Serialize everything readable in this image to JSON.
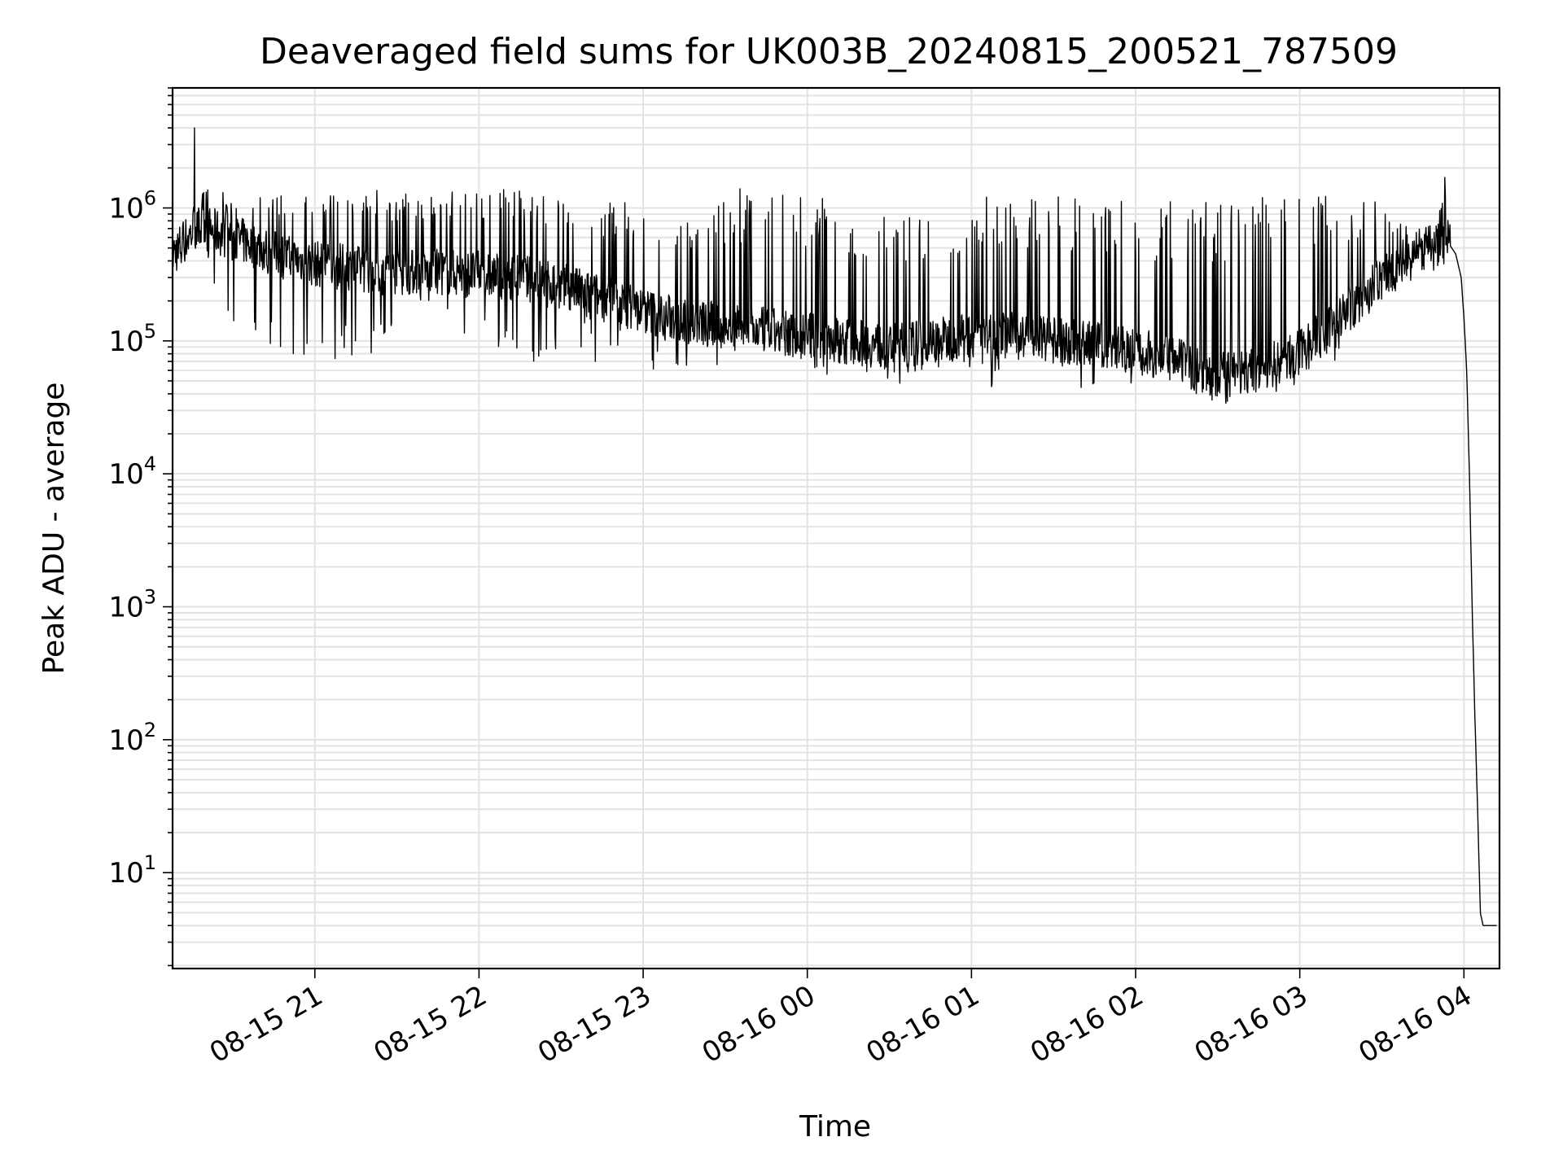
{
  "chart_data": {
    "type": "line",
    "title": "Deaveraged field sums for UK003B_20240815_200521_787509",
    "xlabel": "Time",
    "ylabel": "Peak ADU - average",
    "yscale": "log",
    "ylim": [
      1.9,
      8000000
    ],
    "xlim": [
      "2024-08-15 20:08",
      "2024-08-16 04:13"
    ],
    "grid": true,
    "x_ticks": [
      {
        "value": "2024-08-15 21:00",
        "label": "08-15 21"
      },
      {
        "value": "2024-08-15 22:00",
        "label": "08-15 22"
      },
      {
        "value": "2024-08-15 23:00",
        "label": "08-15 23"
      },
      {
        "value": "2024-08-16 00:00",
        "label": "08-16 00"
      },
      {
        "value": "2024-08-16 01:00",
        "label": "08-16 01"
      },
      {
        "value": "2024-08-16 02:00",
        "label": "08-16 02"
      },
      {
        "value": "2024-08-16 03:00",
        "label": "08-16 03"
      },
      {
        "value": "2024-08-16 04:00",
        "label": "08-16 04"
      }
    ],
    "y_ticks": [
      {
        "value": 10,
        "base": "10",
        "exp": "1"
      },
      {
        "value": 100,
        "base": "10",
        "exp": "2"
      },
      {
        "value": 1000,
        "base": "10",
        "exp": "3"
      },
      {
        "value": 10000,
        "base": "10",
        "exp": "4"
      },
      {
        "value": 100000,
        "base": "10",
        "exp": "5"
      },
      {
        "value": 1000000,
        "base": "10",
        "exp": "6"
      }
    ],
    "series": [
      {
        "color": "#000000",
        "x": [
          "2024-08-15 20:08",
          "2024-08-15 20:15",
          "2024-08-15 20:20",
          "2024-08-15 20:30",
          "2024-08-15 20:40",
          "2024-08-15 20:50",
          "2024-08-15 21:00",
          "2024-08-15 21:15",
          "2024-08-15 21:30",
          "2024-08-15 21:45",
          "2024-08-15 22:00",
          "2024-08-15 22:15",
          "2024-08-15 22:30",
          "2024-08-15 22:45",
          "2024-08-15 23:00",
          "2024-08-15 23:15",
          "2024-08-15 23:30",
          "2024-08-15 23:45",
          "2024-08-16 00:00",
          "2024-08-16 00:15",
          "2024-08-16 00:30",
          "2024-08-16 00:45",
          "2024-08-16 01:00",
          "2024-08-16 01:15",
          "2024-08-16 01:30",
          "2024-08-16 01:45",
          "2024-08-16 02:00",
          "2024-08-16 02:15",
          "2024-08-16 02:30",
          "2024-08-16 02:45",
          "2024-08-16 03:00",
          "2024-08-16 03:15",
          "2024-08-16 03:30",
          "2024-08-16 03:40",
          "2024-08-16 03:48",
          "2024-08-16 03:53",
          "2024-08-16 03:55",
          "2024-08-16 03:57",
          "2024-08-16 03:59",
          "2024-08-16 04:00",
          "2024-08-16 04:01",
          "2024-08-16 04:02",
          "2024-08-16 04:03",
          "2024-08-16 04:04",
          "2024-08-16 04:05",
          "2024-08-16 04:06",
          "2024-08-16 04:07",
          "2024-08-16 04:08",
          "2024-08-16 04:09",
          "2024-08-16 04:10",
          "2024-08-16 04:12"
        ],
        "y": [
          450000,
          650000,
          700000,
          600000,
          500000,
          420000,
          380000,
          350000,
          330000,
          330000,
          320000,
          300000,
          260000,
          210000,
          170000,
          140000,
          130000,
          120000,
          110000,
          100000,
          90000,
          100000,
          110000,
          110000,
          100000,
          95000,
          85000,
          70000,
          55000,
          60000,
          80000,
          150000,
          300000,
          420000,
          500000,
          550000,
          520000,
          450000,
          300000,
          150000,
          60000,
          10000,
          1000,
          150,
          30,
          5,
          4,
          4,
          4,
          4,
          4
        ],
        "min_envelope": [
          400000,
          300000,
          250000,
          130000,
          100000,
          80000,
          70000,
          70000,
          70000,
          70000,
          70000,
          70000,
          65000,
          65000,
          60000,
          60000,
          60000,
          58000,
          55000,
          52000,
          48000,
          45000,
          45000,
          45000,
          45000,
          42000,
          42000,
          35000,
          32000,
          38000,
          45000,
          70000,
          200000,
          380000,
          480000,
          530000,
          500000,
          430000,
          300000,
          150000,
          60000,
          10000,
          1000,
          150,
          30,
          5,
          4,
          4,
          4,
          4,
          4
        ],
        "max_envelope": [
          800000,
          1000000,
          1400000,
          1400000,
          1400000,
          1300000,
          1300000,
          1400000,
          1400000,
          1400000,
          1400000,
          1400000,
          1300000,
          1200000,
          1100000,
          1000000,
          1400000,
          1400000,
          1300000,
          1200000,
          1000000,
          900000,
          1200000,
          1300000,
          1300000,
          1100000,
          1200000,
          1100000,
          1100000,
          1200000,
          1300000,
          1300000,
          1100000,
          800000,
          600000,
          1700000,
          520000,
          450000,
          300000,
          150000,
          60000,
          10000,
          1000,
          150,
          30,
          5,
          4,
          4,
          4,
          4,
          4
        ],
        "spikes": [
          {
            "x": "2024-08-15 20:16",
            "y": 4000000
          },
          {
            "x": "2024-08-16 03:53",
            "y": 1700000
          }
        ]
      }
    ]
  }
}
